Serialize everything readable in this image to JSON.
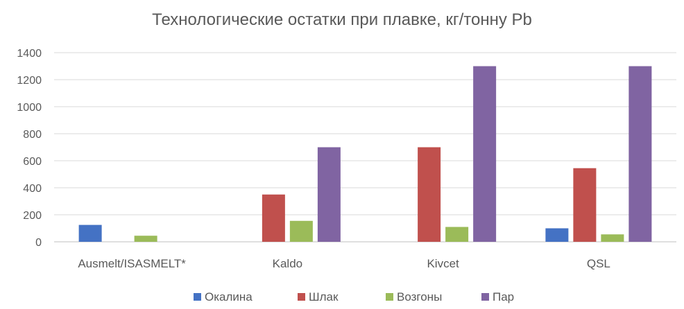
{
  "chart_data": {
    "type": "bar",
    "title": "Технологические остатки при плавке, кг/тонну Pb",
    "xlabel": "",
    "ylabel": "",
    "categories": [
      "Ausmelt/ISASMELT*",
      "Kaldo",
      "Kivcet",
      "QSL"
    ],
    "series": [
      {
        "name": "Окалина",
        "color": "#4472C4",
        "values": [
          125,
          0,
          0,
          100
        ]
      },
      {
        "name": "Шлак",
        "color": "#C0504D",
        "values": [
          0,
          350,
          700,
          545
        ]
      },
      {
        "name": "Возгоны",
        "color": "#9BBB59",
        "values": [
          45,
          155,
          110,
          55
        ]
      },
      {
        "name": "Пар",
        "color": "#8064A2",
        "values": [
          0,
          700,
          1300,
          1300
        ]
      }
    ],
    "ylim": [
      0,
      1400
    ],
    "yticks": [
      0,
      200,
      400,
      600,
      800,
      1000,
      1200,
      1400
    ],
    "grid": true,
    "legend_position": "bottom"
  }
}
